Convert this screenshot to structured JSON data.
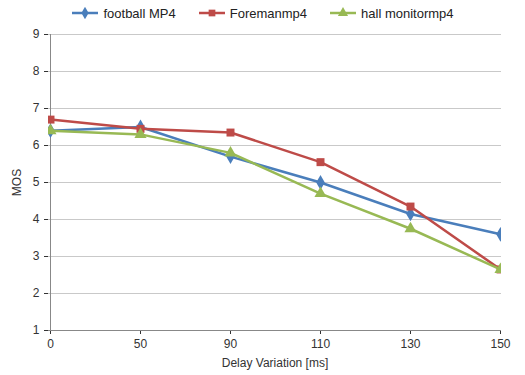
{
  "chart_data": {
    "type": "line",
    "x_label": "Delay Variation [ms]",
    "y_label": "MOS",
    "categories": [
      "0",
      "50",
      "90",
      "110",
      "130",
      "150"
    ],
    "series": [
      {
        "name": "football MP4",
        "color": "#4a7ebb",
        "marker": "diamond",
        "values": [
          6.4,
          6.5,
          5.7,
          5.0,
          4.15,
          3.6
        ]
      },
      {
        "name": "Foremanmp4",
        "color": "#be4b48",
        "marker": "square",
        "values": [
          6.7,
          6.45,
          6.35,
          5.55,
          4.35,
          2.65
        ]
      },
      {
        "name": "hall monitormp4",
        "color": "#98b954",
        "marker": "triangle",
        "values": [
          6.4,
          6.3,
          5.8,
          4.7,
          3.75,
          2.65
        ]
      }
    ],
    "ylim": [
      1,
      9
    ],
    "yticks": [
      1,
      2,
      3,
      4,
      5,
      6,
      7,
      8,
      9
    ],
    "grid": true,
    "legend": "top"
  }
}
